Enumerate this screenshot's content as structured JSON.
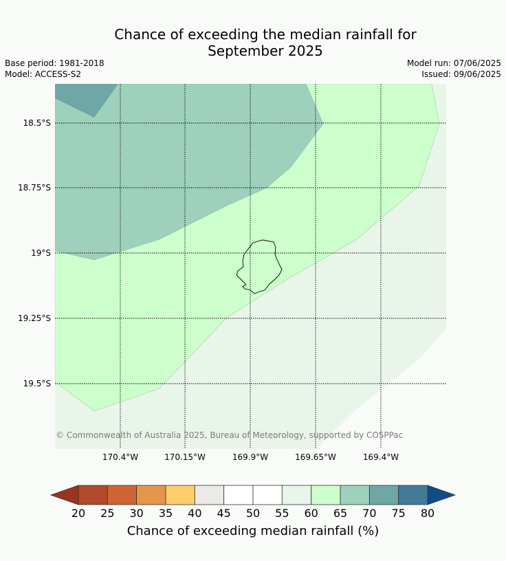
{
  "header": {
    "title_line1": "Chance of exceeding the median rainfall for",
    "title_line2": "September 2025",
    "base_period": "Base period: 1981-2018",
    "model": "Model: ACCESS-S2",
    "model_run": "Model run: 07/06/2025",
    "issued": "Issued: 09/06/2025"
  },
  "map": {
    "lat_labels": [
      "18.5°S",
      "18.75°S",
      "19°S",
      "19.25°S",
      "19.5°S"
    ],
    "lon_labels": [
      "170.4°W",
      "170.15°W",
      "169.9°W",
      "169.65°W",
      "169.4°W"
    ],
    "copyright": "© Commonwealth of Australia 2025, Bureau of Meteorology, supported by COSPPac",
    "zone_colors": {
      "gt75": "#6fa6a6",
      "z70_75": "#9ed1bb",
      "z65_70": "#ccffcc",
      "z60_65": "#eaf5ea",
      "z55_60": "#ffffff"
    }
  },
  "colorbar": {
    "title": "Chance of exceeding median rainfall (%)",
    "ticks": [
      "20",
      "25",
      "30",
      "35",
      "40",
      "45",
      "50",
      "55",
      "60",
      "65",
      "70",
      "75",
      "80"
    ],
    "under_color": "#9b3320",
    "over_color": "#0f4d87",
    "colors": [
      "#b3492a",
      "#cf6534",
      "#e4964b",
      "#ffcd6a",
      "#ebeae6",
      "#ffffff",
      "#ffffff",
      "#eaf5ea",
      "#ccffcc",
      "#9ed1bb",
      "#6fa6a6",
      "#437a98"
    ]
  }
}
